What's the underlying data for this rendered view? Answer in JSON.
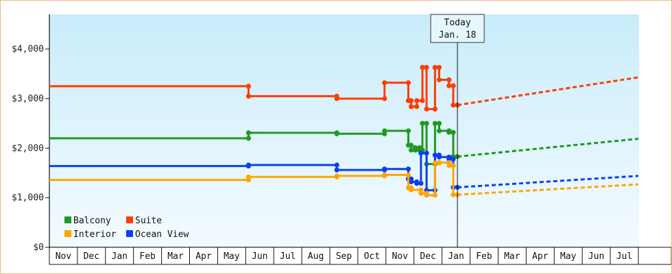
{
  "chart_data": {
    "type": "line",
    "y_ticks": [
      "$0",
      "$1,000",
      "$2,000",
      "$3,000",
      "$4,000"
    ],
    "y_tick_values": [
      0,
      1000,
      2000,
      3000,
      4000
    ],
    "ylim": [
      0,
      4700
    ],
    "months": [
      "Nov",
      "Dec",
      "Jan",
      "Feb",
      "Mar",
      "Apr",
      "May",
      "Jun",
      "Jul",
      "Aug",
      "Sep",
      "Oct",
      "Nov",
      "Dec",
      "Jan",
      "Feb",
      "Mar",
      "Apr",
      "May",
      "Jun",
      "Jul"
    ],
    "x_unit": "month index (0 = first Nov)",
    "xlim": [
      0,
      21
    ],
    "today": {
      "label_line1": "Today",
      "label_line2": "Jan. 18",
      "x": 14.55
    },
    "legend": [
      "Balcony",
      "Suite",
      "Interior",
      "Ocean View"
    ],
    "grid": false,
    "legend_placement": "bottom-left",
    "series": [
      {
        "name": "Suite",
        "color": "#ff3b00",
        "history": [
          [
            0,
            3250
          ],
          [
            7.1,
            3250
          ],
          [
            7.1,
            3050
          ],
          [
            10.25,
            3050
          ],
          [
            10.25,
            3000
          ],
          [
            11.95,
            3000
          ],
          [
            11.95,
            3320
          ],
          [
            12.8,
            3320
          ],
          [
            12.8,
            2960
          ],
          [
            12.9,
            2960
          ],
          [
            12.9,
            2840
          ],
          [
            13.1,
            2840
          ],
          [
            13.1,
            2960
          ],
          [
            13.3,
            2960
          ],
          [
            13.3,
            3630
          ],
          [
            13.45,
            3630
          ],
          [
            13.45,
            2790
          ],
          [
            13.75,
            2790
          ],
          [
            13.75,
            3630
          ],
          [
            13.9,
            3630
          ],
          [
            13.9,
            3380
          ],
          [
            14.25,
            3380
          ],
          [
            14.25,
            3260
          ],
          [
            14.4,
            3260
          ],
          [
            14.4,
            2870
          ],
          [
            14.55,
            2870
          ]
        ],
        "forecast": [
          [
            14.55,
            2870
          ],
          [
            21,
            3430
          ]
        ]
      },
      {
        "name": "Balcony",
        "color": "#1e9a1e",
        "history": [
          [
            0,
            2200
          ],
          [
            7.1,
            2200
          ],
          [
            7.1,
            2310
          ],
          [
            10.25,
            2310
          ],
          [
            10.25,
            2290
          ],
          [
            11.95,
            2290
          ],
          [
            11.95,
            2350
          ],
          [
            12.8,
            2350
          ],
          [
            12.8,
            2060
          ],
          [
            12.9,
            2060
          ],
          [
            12.9,
            1960
          ],
          [
            13.05,
            1960
          ],
          [
            13.05,
            2010
          ],
          [
            13.2,
            2010
          ],
          [
            13.2,
            1960
          ],
          [
            13.3,
            1960
          ],
          [
            13.3,
            2500
          ],
          [
            13.45,
            2500
          ],
          [
            13.45,
            1680
          ],
          [
            13.75,
            1680
          ],
          [
            13.75,
            2500
          ],
          [
            13.9,
            2500
          ],
          [
            13.9,
            2350
          ],
          [
            14.25,
            2350
          ],
          [
            14.25,
            2320
          ],
          [
            14.4,
            2320
          ],
          [
            14.4,
            1830
          ],
          [
            14.55,
            1830
          ]
        ],
        "forecast": [
          [
            14.55,
            1830
          ],
          [
            21,
            2190
          ]
        ]
      },
      {
        "name": "Ocean View",
        "color": "#0a3ff0",
        "history": [
          [
            0,
            1640
          ],
          [
            7.1,
            1640
          ],
          [
            7.1,
            1660
          ],
          [
            10.25,
            1660
          ],
          [
            10.25,
            1560
          ],
          [
            11.95,
            1560
          ],
          [
            11.95,
            1580
          ],
          [
            12.8,
            1580
          ],
          [
            12.8,
            1380
          ],
          [
            12.9,
            1380
          ],
          [
            12.9,
            1320
          ],
          [
            13.1,
            1320
          ],
          [
            13.1,
            1290
          ],
          [
            13.25,
            1290
          ],
          [
            13.25,
            1900
          ],
          [
            13.45,
            1900
          ],
          [
            13.45,
            1150
          ],
          [
            13.75,
            1150
          ],
          [
            13.75,
            1860
          ],
          [
            13.9,
            1860
          ],
          [
            13.9,
            1820
          ],
          [
            14.25,
            1820
          ],
          [
            14.25,
            1780
          ],
          [
            14.4,
            1780
          ],
          [
            14.4,
            1210
          ],
          [
            14.55,
            1210
          ]
        ],
        "forecast": [
          [
            14.55,
            1210
          ],
          [
            21,
            1440
          ]
        ]
      },
      {
        "name": "Interior",
        "color": "#ffa500",
        "history": [
          [
            0,
            1360
          ],
          [
            7.1,
            1360
          ],
          [
            7.1,
            1420
          ],
          [
            10.25,
            1420
          ],
          [
            10.25,
            1440
          ],
          [
            11.95,
            1440
          ],
          [
            11.95,
            1460
          ],
          [
            12.8,
            1460
          ],
          [
            12.8,
            1200
          ],
          [
            12.9,
            1200
          ],
          [
            12.9,
            1160
          ],
          [
            13.25,
            1160
          ],
          [
            13.25,
            1090
          ],
          [
            13.45,
            1090
          ],
          [
            13.45,
            1050
          ],
          [
            13.75,
            1050
          ],
          [
            13.75,
            1700
          ],
          [
            13.9,
            1700
          ],
          [
            13.9,
            1710
          ],
          [
            14.25,
            1710
          ],
          [
            14.25,
            1650
          ],
          [
            14.4,
            1650
          ],
          [
            14.4,
            1060
          ],
          [
            14.55,
            1060
          ]
        ],
        "forecast": [
          [
            14.55,
            1060
          ],
          [
            21,
            1270
          ]
        ]
      }
    ]
  }
}
